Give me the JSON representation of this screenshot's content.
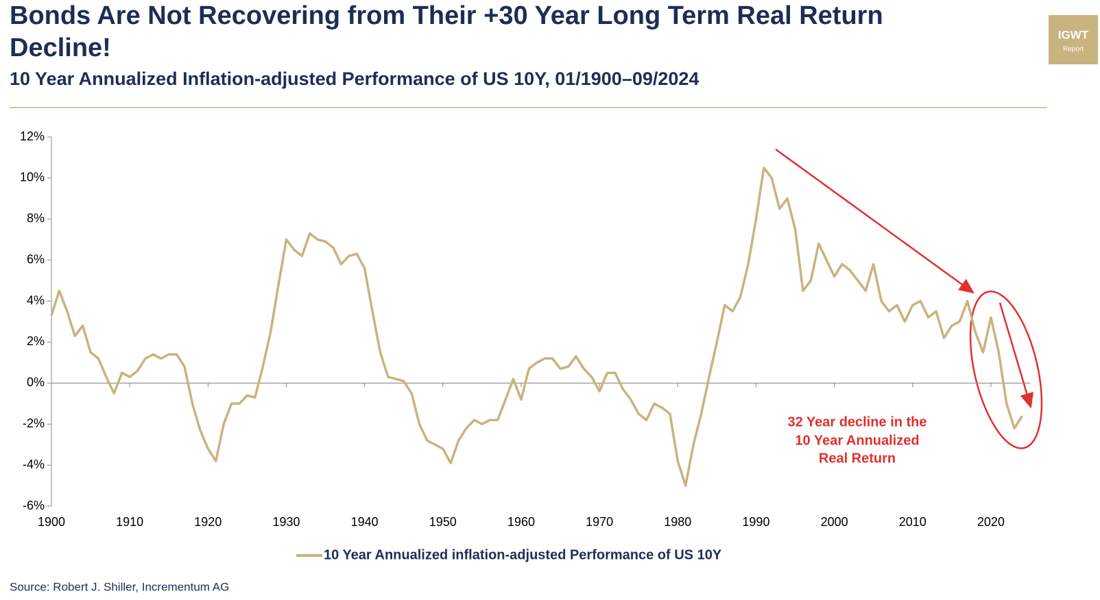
{
  "chart_data": {
    "type": "line",
    "title_lines": [
      "Bonds Are Not Recovering from Their +30 Year Long Term Real Return",
      "Decline!"
    ],
    "subtitle": "10 Year Annualized Inflation-adjusted Performance of US 10Y, 01/1900–09/2024",
    "logo": {
      "name": "IGWT",
      "sub": "Report"
    },
    "source": "Source: Robert J. Shiller, Incrementum AG",
    "annotation_lines": [
      "32 Year decline in the",
      "10 Year Annualized",
      "Real Return"
    ],
    "x": [
      1900,
      1901,
      1902,
      1903,
      1904,
      1905,
      1906,
      1907,
      1908,
      1909,
      1910,
      1911,
      1912,
      1913,
      1914,
      1915,
      1916,
      1917,
      1918,
      1919,
      1920,
      1921,
      1922,
      1923,
      1924,
      1925,
      1926,
      1927,
      1928,
      1929,
      1930,
      1931,
      1932,
      1933,
      1934,
      1935,
      1936,
      1937,
      1938,
      1939,
      1940,
      1941,
      1942,
      1943,
      1944,
      1945,
      1946,
      1947,
      1948,
      1949,
      1950,
      1951,
      1952,
      1953,
      1954,
      1955,
      1956,
      1957,
      1958,
      1959,
      1960,
      1961,
      1962,
      1963,
      1964,
      1965,
      1966,
      1967,
      1968,
      1969,
      1970,
      1971,
      1972,
      1973,
      1974,
      1975,
      1976,
      1977,
      1978,
      1979,
      1980,
      1981,
      1982,
      1983,
      1984,
      1985,
      1986,
      1987,
      1988,
      1989,
      1990,
      1991,
      1992,
      1993,
      1994,
      1995,
      1996,
      1997,
      1998,
      1999,
      2000,
      2001,
      2002,
      2003,
      2004,
      2005,
      2006,
      2007,
      2008,
      2009,
      2010,
      2011,
      2012,
      2013,
      2014,
      2015,
      2016,
      2017,
      2018,
      2019,
      2020,
      2021,
      2022,
      2023,
      2024
    ],
    "series": [
      {
        "name": "10 Year Annualized inflation-adjusted Performance of US 10Y",
        "color": "#c9b37e",
        "values": [
          3.3,
          4.5,
          3.5,
          2.3,
          2.8,
          1.5,
          1.2,
          0.3,
          -0.5,
          0.5,
          0.3,
          0.6,
          1.2,
          1.4,
          1.2,
          1.4,
          1.4,
          0.8,
          -1.0,
          -2.3,
          -3.2,
          -3.8,
          -2.0,
          -1.0,
          -1.0,
          -0.6,
          -0.7,
          0.8,
          2.5,
          4.8,
          7.0,
          6.5,
          6.2,
          7.3,
          7.0,
          6.9,
          6.6,
          5.8,
          6.2,
          6.3,
          5.6,
          3.5,
          1.5,
          0.3,
          0.2,
          0.1,
          -0.5,
          -2.0,
          -2.8,
          -3.0,
          -3.2,
          -3.9,
          -2.8,
          -2.2,
          -1.8,
          -2.0,
          -1.8,
          -1.8,
          -0.8,
          0.2,
          -0.8,
          0.7,
          1.0,
          1.2,
          1.2,
          0.7,
          0.8,
          1.3,
          0.7,
          0.3,
          -0.4,
          0.5,
          0.5,
          -0.3,
          -0.8,
          -1.5,
          -1.8,
          -1.0,
          -1.2,
          -1.5,
          -3.8,
          -5.0,
          -3.0,
          -1.5,
          0.3,
          2.0,
          3.8,
          3.5,
          4.2,
          5.8,
          8.0,
          10.5,
          10.0,
          8.5,
          9.0,
          7.5,
          4.5,
          5.0,
          6.8,
          6.0,
          5.2,
          5.8,
          5.5,
          5.0,
          4.5,
          5.8,
          4.0,
          3.5,
          3.8,
          3.0,
          3.8,
          4.0,
          3.2,
          3.5,
          2.2,
          2.8,
          3.0,
          4.0,
          2.5,
          1.5,
          3.2,
          1.5,
          -1.0,
          -2.2,
          -1.6
        ]
      }
    ],
    "xlim": [
      1900,
      2025
    ],
    "xticks": [
      1900,
      1910,
      1920,
      1930,
      1940,
      1950,
      1960,
      1970,
      1980,
      1990,
      2000,
      2010,
      2020
    ],
    "ylim": [
      -6,
      12
    ],
    "yticks": [
      {
        "value": -6,
        "label": "-6%"
      },
      {
        "value": -4,
        "label": "-4%"
      },
      {
        "value": -2,
        "label": "-2%"
      },
      {
        "value": 0,
        "label": "0%"
      },
      {
        "value": 2,
        "label": "2%"
      },
      {
        "value": 4,
        "label": "4%"
      },
      {
        "value": 6,
        "label": "6%"
      },
      {
        "value": 8,
        "label": "8%"
      },
      {
        "value": 10,
        "label": "10%"
      },
      {
        "value": 12,
        "label": "12%"
      }
    ],
    "grid": false
  }
}
